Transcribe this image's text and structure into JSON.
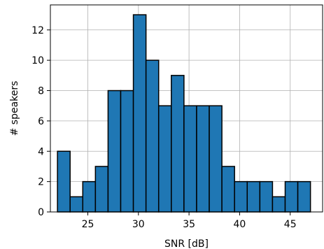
{
  "chart_data": {
    "type": "bar",
    "subtype": "histogram",
    "xlabel": "SNR [dB]",
    "ylabel": "# speakers",
    "xlim": [
      21.3,
      48.2
    ],
    "ylim": [
      0,
      13.65
    ],
    "grid": true,
    "bar_color": "#1f77b4",
    "edge_color": "#000000",
    "x_ticks": [
      25,
      30,
      35,
      40,
      45
    ],
    "y_ticks": [
      0,
      2,
      4,
      6,
      8,
      10,
      12
    ],
    "bins": [
      {
        "x0": 22.0,
        "x1": 23.25,
        "count": 4
      },
      {
        "x0": 23.25,
        "x1": 24.5,
        "count": 1
      },
      {
        "x0": 24.5,
        "x1": 25.75,
        "count": 2
      },
      {
        "x0": 25.75,
        "x1": 27.0,
        "count": 3
      },
      {
        "x0": 27.0,
        "x1": 28.25,
        "count": 8
      },
      {
        "x0": 28.25,
        "x1": 29.5,
        "count": 8
      },
      {
        "x0": 29.5,
        "x1": 30.75,
        "count": 13
      },
      {
        "x0": 30.75,
        "x1": 32.0,
        "count": 10
      },
      {
        "x0": 32.0,
        "x1": 33.25,
        "count": 7
      },
      {
        "x0": 33.25,
        "x1": 34.5,
        "count": 9
      },
      {
        "x0": 34.5,
        "x1": 35.75,
        "count": 7
      },
      {
        "x0": 35.75,
        "x1": 37.0,
        "count": 7
      },
      {
        "x0": 37.0,
        "x1": 38.25,
        "count": 7
      },
      {
        "x0": 38.25,
        "x1": 39.5,
        "count": 3
      },
      {
        "x0": 39.5,
        "x1": 40.75,
        "count": 2
      },
      {
        "x0": 40.75,
        "x1": 42.0,
        "count": 2
      },
      {
        "x0": 42.0,
        "x1": 43.25,
        "count": 2
      },
      {
        "x0": 43.25,
        "x1": 44.5,
        "count": 1
      },
      {
        "x0": 44.5,
        "x1": 45.75,
        "count": 2
      },
      {
        "x0": 45.75,
        "x1": 47.0,
        "count": 2
      }
    ]
  }
}
